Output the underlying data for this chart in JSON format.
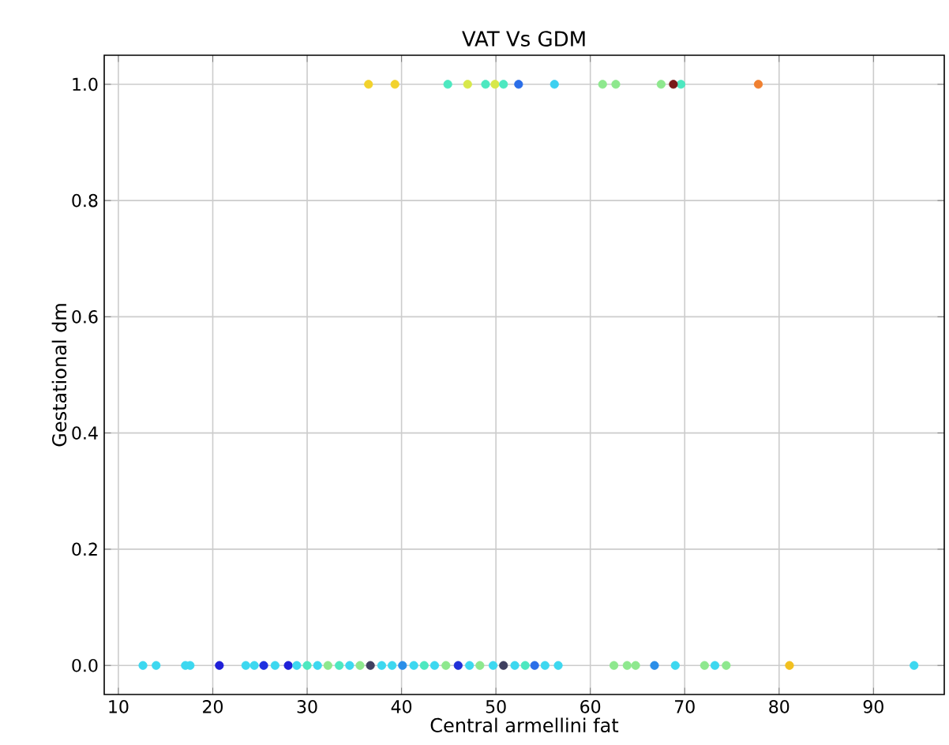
{
  "chart_data": {
    "type": "scatter",
    "title": "VAT Vs GDM",
    "xlabel": "Central armellini fat",
    "ylabel": "Gestational dm",
    "x": [
      36.5,
      39.3,
      44.9,
      47.0,
      48.9,
      49.9,
      50.8,
      52.4,
      56.2,
      61.3,
      62.7,
      67.5,
      69.6,
      68.8,
      77.8,
      12.6,
      14.0,
      17.1,
      17.6,
      20.7,
      23.5,
      24.4,
      25.4,
      26.6,
      28.0,
      28.9,
      30.0,
      31.1,
      32.2,
      33.4,
      34.5,
      35.6,
      36.7,
      37.9,
      39.0,
      40.1,
      41.3,
      42.4,
      43.5,
      44.7,
      46.0,
      47.2,
      48.3,
      49.7,
      50.8,
      52.0,
      53.1,
      54.1,
      55.2,
      56.6,
      62.5,
      63.9,
      64.8,
      66.8,
      69.0,
      72.1,
      73.2,
      74.4,
      81.1,
      94.3
    ],
    "values": [
      1,
      1,
      1,
      1,
      1,
      1,
      1,
      1,
      1,
      1,
      1,
      1,
      1,
      1,
      1,
      0,
      0,
      0,
      0,
      0,
      0,
      0,
      0,
      0,
      0,
      0,
      0,
      0,
      0,
      0,
      0,
      0,
      0,
      0,
      0,
      0,
      0,
      0,
      0,
      0,
      0,
      0,
      0,
      0,
      0,
      0,
      0,
      0,
      0,
      0,
      0,
      0,
      0,
      0,
      0,
      0,
      0,
      0,
      0,
      0
    ],
    "colors": [
      "#f2d22c",
      "#f2d22c",
      "#4de8c0",
      "#d8e84a",
      "#4de8c0",
      "#d8e84a",
      "#4de8c0",
      "#2b6ee8",
      "#3dd0f0",
      "#8ee88e",
      "#8ee88e",
      "#8ee88e",
      "#4de8c0",
      "#7a1a1a",
      "#f08030",
      "#3dd8f0",
      "#3dd8f0",
      "#3dd8f0",
      "#3dd8f0",
      "#2020d8",
      "#3dd8f0",
      "#3dd8f0",
      "#2030e0",
      "#3dd8f0",
      "#2020d8",
      "#3dd8f0",
      "#4de8c0",
      "#3dd8f0",
      "#8ee88e",
      "#4de8c0",
      "#3dd8f0",
      "#8ee88e",
      "#404060",
      "#3dd8f0",
      "#3dd8f0",
      "#2b8ee8",
      "#3dd8f0",
      "#4de8c0",
      "#3dd8f0",
      "#8ee88e",
      "#2030d8",
      "#3dd8f0",
      "#8ee88e",
      "#3dd8f0",
      "#404060",
      "#3dd8f0",
      "#4de8c0",
      "#2b6ee8",
      "#3dd8f0",
      "#3dd8f0",
      "#8ee88e",
      "#8ee88e",
      "#8ee88e",
      "#2b8ee8",
      "#3dd8f0",
      "#8ee88e",
      "#3dd8f0",
      "#8ee88e",
      "#f2c020",
      "#3dd8f0"
    ],
    "xlim": [
      8.5,
      97.5
    ],
    "xticks": [
      10,
      20,
      30,
      40,
      50,
      60,
      70,
      80,
      90
    ],
    "ylim": [
      -0.05,
      1.05
    ],
    "yticks": [
      {
        "value": 0,
        "label": "0.0"
      },
      {
        "value": 0.2,
        "label": "0.2"
      },
      {
        "value": 0.4,
        "label": "0.4"
      },
      {
        "value": 0.6,
        "label": "0.6"
      },
      {
        "value": 0.8,
        "label": "0.8"
      },
      {
        "value": 1,
        "label": "1.0"
      }
    ],
    "grid": true,
    "marker": "circle"
  }
}
